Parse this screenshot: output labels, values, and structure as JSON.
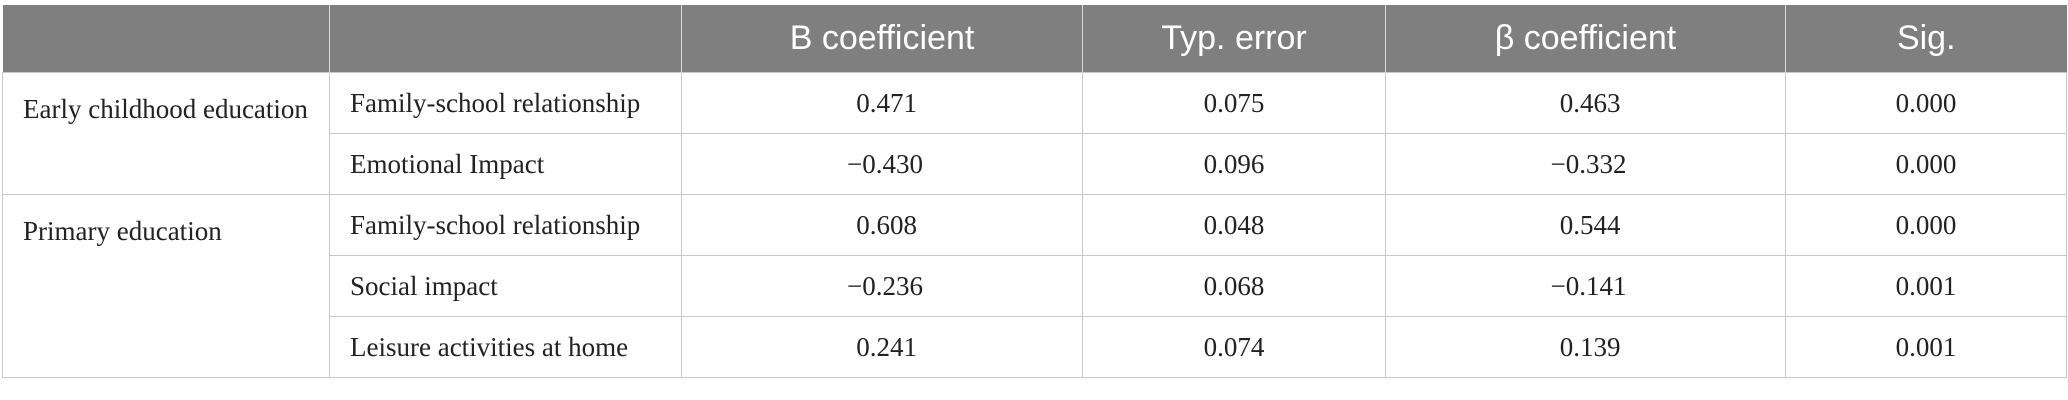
{
  "table": {
    "headers": [
      "",
      "",
      "B coefficient",
      "Typ. error",
      "β coefficient",
      "Sig."
    ],
    "groups": [
      {
        "label": "Early childhood education",
        "rows": [
          {
            "variable": "Family-school relationship",
            "b": "0.471",
            "se": "0.075",
            "beta": "0.463",
            "sig": "0.000"
          },
          {
            "variable": "Emotional Impact",
            "b": "−0.430",
            "se": "0.096",
            "beta": "−0.332",
            "sig": "0.000"
          }
        ]
      },
      {
        "label": "Primary education",
        "rows": [
          {
            "variable": "Family-school relationship",
            "b": "0.608",
            "se": "0.048",
            "beta": "0.544",
            "sig": "0.000"
          },
          {
            "variable": "Social impact",
            "b": "−0.236",
            "se": "0.068",
            "beta": "−0.141",
            "sig": "0.001"
          },
          {
            "variable": "Leisure activities at home",
            "b": "0.241",
            "se": "0.074",
            "beta": "0.139",
            "sig": "0.001"
          }
        ]
      }
    ]
  }
}
